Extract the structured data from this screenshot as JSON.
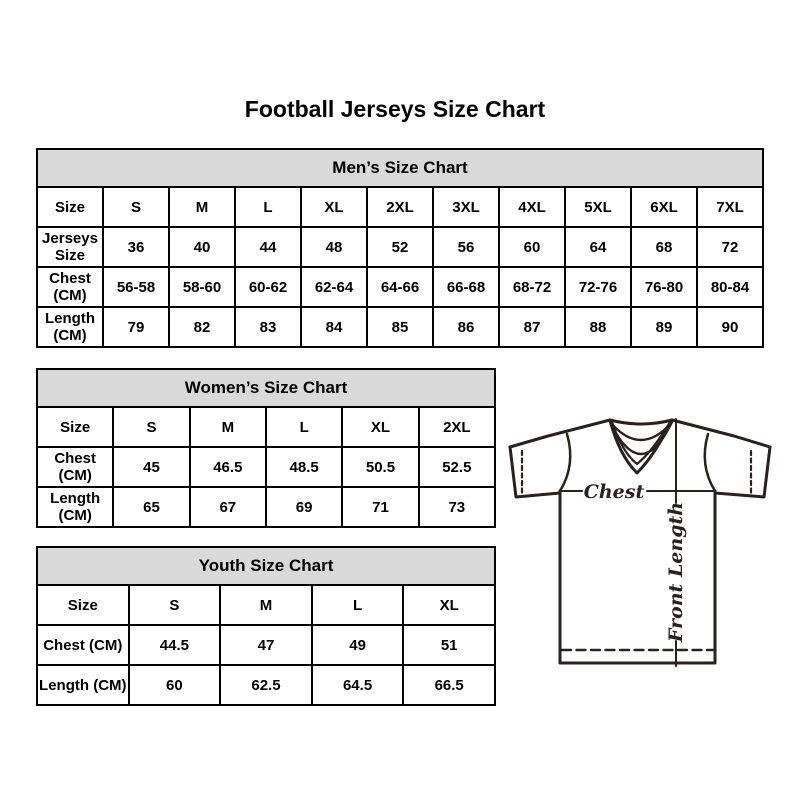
{
  "title": "Football Jerseys Size Chart",
  "chart_data": [
    {
      "type": "table",
      "title": "Men’s Size Chart",
      "rows": [
        [
          "Size",
          "S",
          "M",
          "L",
          "XL",
          "2XL",
          "3XL",
          "4XL",
          "5XL",
          "6XL",
          "7XL"
        ],
        [
          "Jerseys Size",
          "36",
          "40",
          "44",
          "48",
          "52",
          "56",
          "60",
          "64",
          "68",
          "72"
        ],
        [
          "Chest (CM)",
          "56-58",
          "58-60",
          "60-62",
          "62-64",
          "64-66",
          "66-68",
          "68-72",
          "72-76",
          "76-80",
          "80-84"
        ],
        [
          "Length (CM)",
          "79",
          "82",
          "83",
          "84",
          "85",
          "86",
          "87",
          "88",
          "89",
          "90"
        ]
      ]
    },
    {
      "type": "table",
      "title": "Women’s Size Chart",
      "rows": [
        [
          "Size",
          "S",
          "M",
          "L",
          "XL",
          "2XL"
        ],
        [
          "Chest (CM)",
          "45",
          "46.5",
          "48.5",
          "50.5",
          "52.5"
        ],
        [
          "Length (CM)",
          "65",
          "67",
          "69",
          "71",
          "73"
        ]
      ]
    },
    {
      "type": "table",
      "title": "Youth Size Chart",
      "rows": [
        [
          "Size",
          "S",
          "M",
          "L",
          "XL"
        ],
        [
          "Chest (CM)",
          "44.5",
          "47",
          "49",
          "51"
        ],
        [
          "Length (CM)",
          "60",
          "62.5",
          "64.5",
          "66.5"
        ]
      ]
    }
  ],
  "diagram": {
    "chest_label": "Chest",
    "front_length_label": "Front Length"
  },
  "colors": {
    "background": "#ffffff",
    "text": "#000000",
    "table_border": "#000000",
    "table_header_bg": "#d9d9d9",
    "diagram_line": "#2a211d"
  }
}
